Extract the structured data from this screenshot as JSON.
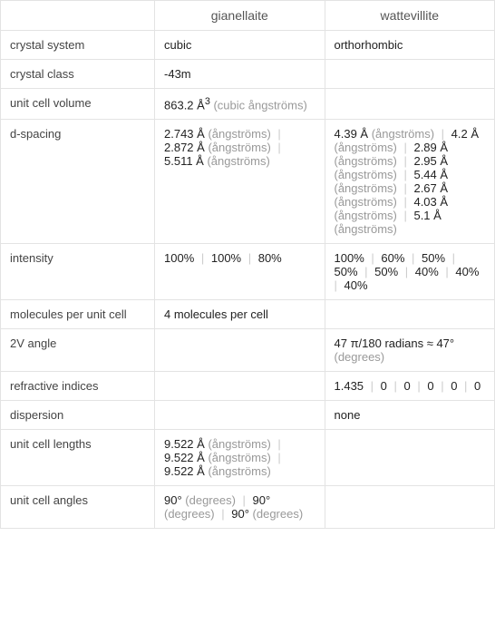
{
  "headers": {
    "col1": "",
    "col2": "gianellaite",
    "col3": "wattevillite"
  },
  "rows": {
    "crystal_system": {
      "label": "crystal system",
      "gianellaite": "cubic",
      "wattevillite": "orthorhombic"
    },
    "crystal_class": {
      "label": "crystal class",
      "gianellaite_prefix": "",
      "gianellaite_overline": "4",
      "gianellaite_suffix": "3m",
      "gianellaite_dash": "-",
      "wattevillite": ""
    },
    "unit_cell_volume": {
      "label": "unit cell volume",
      "gianellaite_val": "863.2 Å",
      "gianellaite_sup": "3",
      "gianellaite_unit": " (cubic ångströms)",
      "wattevillite": ""
    },
    "d_spacing": {
      "label": "d-spacing",
      "gianellaite": [
        {
          "val": "2.743 Å",
          "unit": " (ångströms)"
        },
        {
          "val": "2.872 Å",
          "unit": " (ångströms)"
        },
        {
          "val": "5.511 Å",
          "unit": " (ångströms)"
        }
      ],
      "wattevillite": [
        {
          "val": "4.39 Å",
          "unit": " (ångströms)"
        },
        {
          "val": "4.2 Å",
          "unit": " (ångströms)"
        },
        {
          "val": "2.89 Å",
          "unit": " (ångströms)"
        },
        {
          "val": "2.95 Å",
          "unit": " (ångströms)"
        },
        {
          "val": "5.44 Å",
          "unit": " (ångströms)"
        },
        {
          "val": "2.67 Å",
          "unit": " (ångströms)"
        },
        {
          "val": "4.03 Å",
          "unit": " (ångströms)"
        },
        {
          "val": "5.1 Å",
          "unit": " (ångströms)"
        }
      ]
    },
    "intensity": {
      "label": "intensity",
      "gianellaite": [
        "100%",
        "100%",
        "80%"
      ],
      "wattevillite": [
        "100%",
        "60%",
        "50%",
        "50%",
        "50%",
        "40%",
        "40%",
        "40%"
      ]
    },
    "molecules": {
      "label": "molecules per unit cell",
      "gianellaite": "4 molecules per cell",
      "wattevillite": ""
    },
    "angle_2v": {
      "label": "2V angle",
      "gianellaite": "",
      "wattevillite_val": "47 π/180 radians ≈ 47°",
      "wattevillite_unit": " (degrees)"
    },
    "refractive": {
      "label": "refractive indices",
      "gianellaite": "",
      "wattevillite": [
        "1.435",
        "0",
        "0",
        "0",
        "0",
        "0"
      ]
    },
    "dispersion": {
      "label": "dispersion",
      "gianellaite": "",
      "wattevillite": "none"
    },
    "unit_cell_lengths": {
      "label": "unit cell lengths",
      "gianellaite": [
        {
          "val": "9.522 Å",
          "unit": " (ångströms)"
        },
        {
          "val": "9.522 Å",
          "unit": " (ångströms)"
        },
        {
          "val": "9.522 Å",
          "unit": " (ångströms)"
        }
      ],
      "wattevillite": ""
    },
    "unit_cell_angles": {
      "label": "unit cell angles",
      "gianellaite": [
        {
          "val": "90°",
          "unit": " (degrees)"
        },
        {
          "val": "90°",
          "unit": " (degrees)"
        },
        {
          "val": "90°",
          "unit": " (degrees)"
        }
      ],
      "wattevillite": ""
    }
  }
}
